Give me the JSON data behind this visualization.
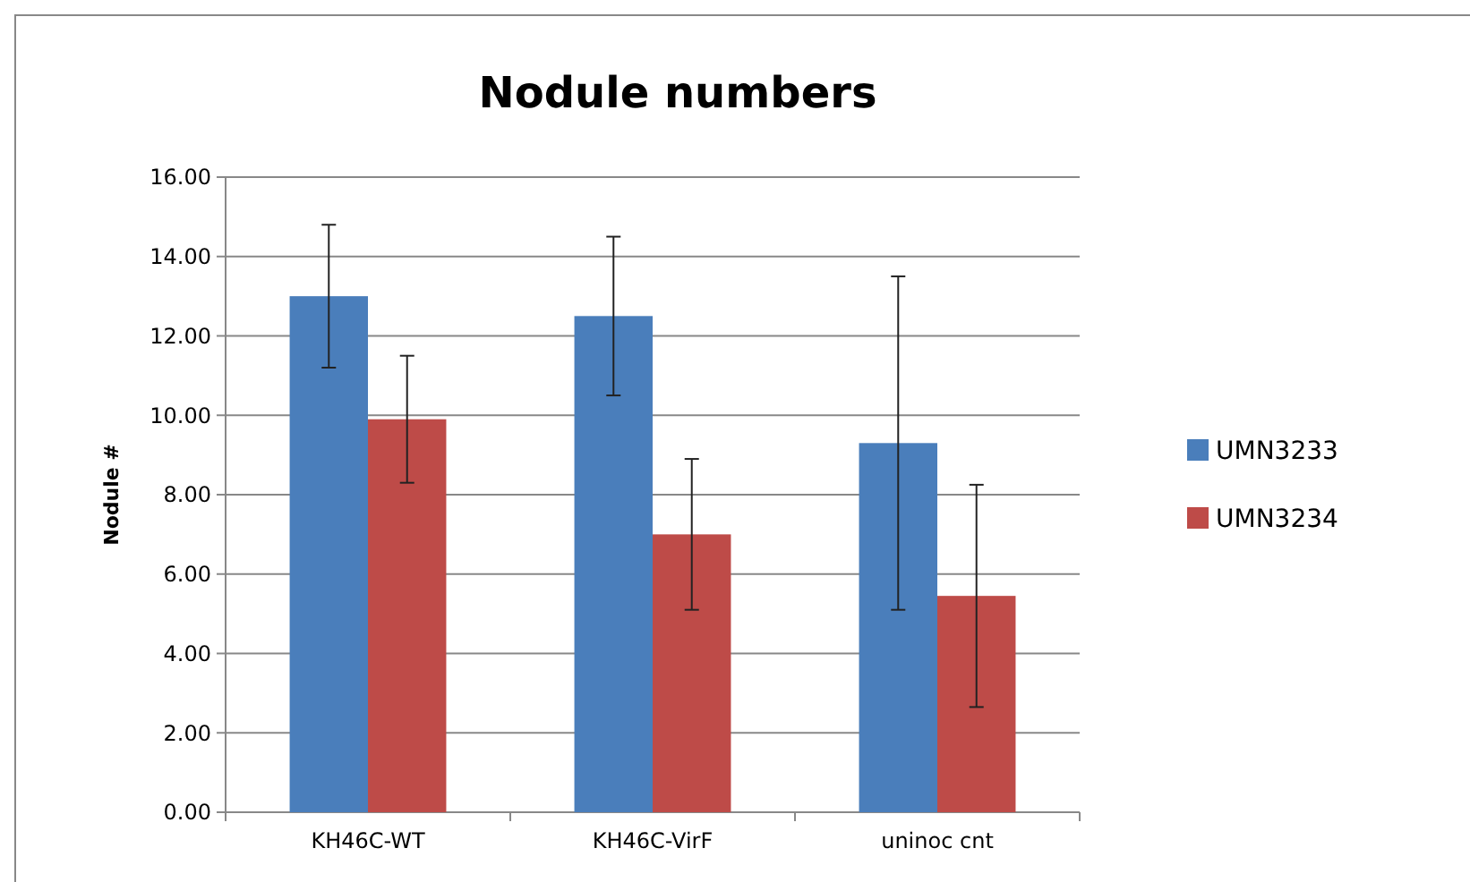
{
  "chart_data": {
    "type": "bar",
    "title": "Nodule numbers",
    "ylabel": "Nodule #",
    "categories": [
      "KH46C-WT",
      "KH46C-VirF",
      "uninoc cnt"
    ],
    "series": [
      {
        "name": "UMN3233",
        "color": "#4a7ebb",
        "values": [
          13.0,
          12.5,
          9.3
        ],
        "errors": [
          1.8,
          2.0,
          4.2
        ]
      },
      {
        "name": "UMN3234",
        "color": "#be4b48",
        "values": [
          9.9,
          7.0,
          5.45
        ],
        "errors": [
          1.6,
          1.9,
          2.8
        ]
      }
    ],
    "ylim": [
      0,
      16
    ],
    "yticks": [
      {
        "value": 0,
        "label": "0.00"
      },
      {
        "value": 2,
        "label": "2.00"
      },
      {
        "value": 4,
        "label": "4.00"
      },
      {
        "value": 6,
        "label": "6.00"
      },
      {
        "value": 8,
        "label": "8.00"
      },
      {
        "value": 10,
        "label": "10.00"
      },
      {
        "value": 12,
        "label": "12.00"
      },
      {
        "value": 14,
        "label": "14.00"
      },
      {
        "value": 16,
        "label": "16.00"
      }
    ],
    "grid": "y",
    "legend": "right"
  }
}
